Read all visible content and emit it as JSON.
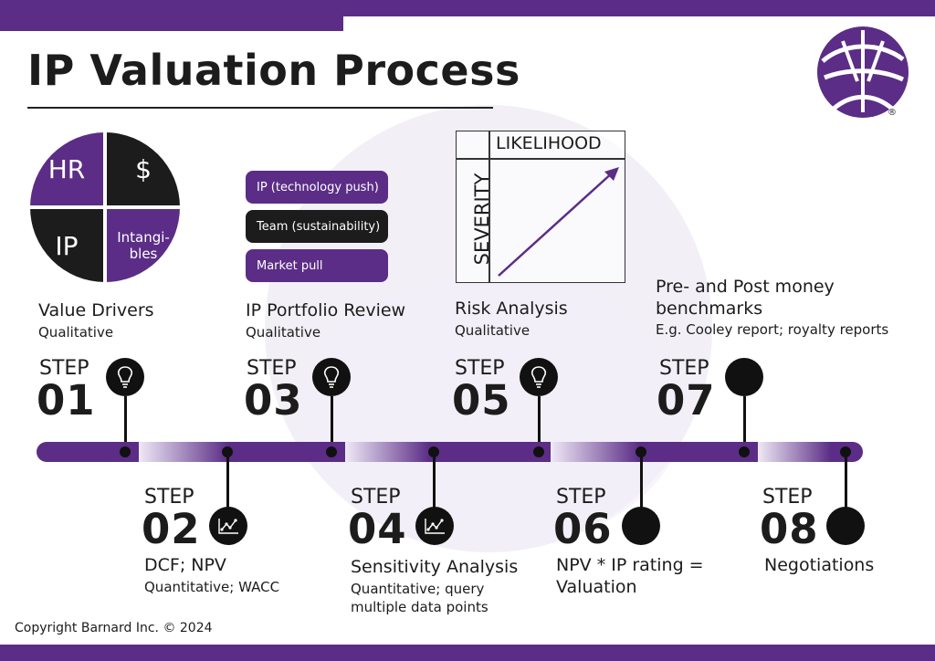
{
  "title": "IP Valuation Process",
  "colors": {
    "primary": "#5b2d86",
    "dark": "#1c1c1c",
    "light": "#efe9f6"
  },
  "value_drivers": {
    "quadrants": [
      "HR",
      "$",
      "IP",
      "Intangi-\nbles"
    ]
  },
  "portfolio": {
    "pills": [
      "IP (technology push)",
      "Team (sustainability)",
      "Market pull"
    ]
  },
  "risk": {
    "x_label": "LIKELIHOOD",
    "y_label": "SEVERITY"
  },
  "steps": [
    {
      "word": "STEP",
      "num": "01",
      "label": "Value Drivers",
      "sub": [
        "Qualitative"
      ],
      "icon": "lightbulb-icon"
    },
    {
      "word": "STEP",
      "num": "02",
      "label": "DCF; NPV",
      "sub": [
        "Quantitative; WACC"
      ],
      "icon": "line-chart-icon"
    },
    {
      "word": "STEP",
      "num": "03",
      "label": "IP Portfolio Review",
      "sub": [
        "Qualitative"
      ],
      "icon": "lightbulb-icon"
    },
    {
      "word": "STEP",
      "num": "04",
      "label": "Sensitivity Analysis",
      "sub": [
        "Quantitative; query",
        "multiple data points"
      ],
      "icon": "line-chart-icon"
    },
    {
      "word": "STEP",
      "num": "05",
      "label": "Risk Analysis",
      "sub": [
        "Qualitative"
      ],
      "icon": "lightbulb-icon"
    },
    {
      "word": "STEP",
      "num": "06",
      "label": [
        "NPV * IP rating =",
        "Valuation"
      ],
      "sub": [],
      "icon": "circle-icon"
    },
    {
      "word": "STEP",
      "num": "07",
      "label": [
        "Pre- and Post money",
        "benchmarks"
      ],
      "sub": [
        "E.g. Cooley report; royalty reports"
      ],
      "icon": "circle-icon"
    },
    {
      "word": "STEP",
      "num": "08",
      "label": "Negotiations",
      "sub": [],
      "icon": "circle-icon"
    }
  ],
  "copyright": "Copyright Barnard Inc. © 2024",
  "logo": {
    "mark": "®"
  }
}
